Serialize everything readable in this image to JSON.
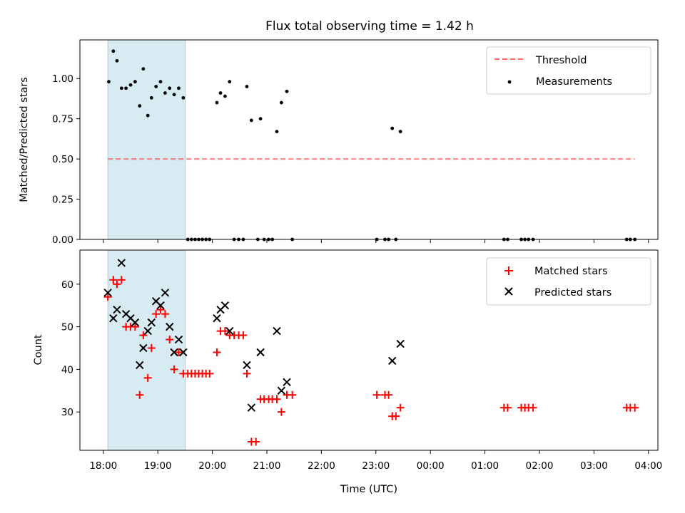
{
  "chart_data": [
    {
      "type": "scatter",
      "title": "Flux total observing time = 1.42 h",
      "ylabel": "Matched/Predicted stars",
      "xlabel": "",
      "x_range": [
        "18:00",
        "04:00"
      ],
      "ylim": [
        0,
        1.24
      ],
      "yticks": [
        "0.00",
        "0.25",
        "0.50",
        "0.75",
        "1.00"
      ],
      "shaded_region": [
        "18:05",
        "19:30"
      ],
      "legend_position": "top-right",
      "grid": false,
      "series": [
        {
          "name": "Threshold",
          "style": "dashed line",
          "color": "#ff6666",
          "points": [
            [
              "18:05",
              0.5
            ],
            [
              "23:30",
              0.5
            ],
            [
              "03:45",
              0.5
            ]
          ]
        },
        {
          "name": "Measurements",
          "style": "dot",
          "color": "#000000",
          "points": [
            [
              "18:06",
              0.98
            ],
            [
              "18:11",
              1.17
            ],
            [
              "18:15",
              1.11
            ],
            [
              "18:20",
              0.94
            ],
            [
              "18:25",
              0.94
            ],
            [
              "18:30",
              0.96
            ],
            [
              "18:35",
              0.98
            ],
            [
              "18:40",
              0.83
            ],
            [
              "18:44",
              1.06
            ],
            [
              "18:49",
              0.77
            ],
            [
              "18:53",
              0.88
            ],
            [
              "18:58",
              0.95
            ],
            [
              "19:03",
              0.98
            ],
            [
              "19:08",
              0.91
            ],
            [
              "19:13",
              0.94
            ],
            [
              "19:18",
              0.9
            ],
            [
              "19:23",
              0.94
            ],
            [
              "19:28",
              0.88
            ],
            [
              "19:33",
              0.0
            ],
            [
              "19:37",
              0.0
            ],
            [
              "19:41",
              0.0
            ],
            [
              "19:45",
              0.0
            ],
            [
              "19:49",
              0.0
            ],
            [
              "19:53",
              0.0
            ],
            [
              "19:57",
              0.0
            ],
            [
              "20:05",
              0.85
            ],
            [
              "20:09",
              0.91
            ],
            [
              "20:14",
              0.89
            ],
            [
              "20:19",
              0.98
            ],
            [
              "20:24",
              0.0
            ],
            [
              "20:29",
              0.0
            ],
            [
              "20:34",
              0.0
            ],
            [
              "20:38",
              0.95
            ],
            [
              "20:43",
              0.74
            ],
            [
              "20:50",
              0.0
            ],
            [
              "20:53",
              0.75
            ],
            [
              "20:57",
              0.0
            ],
            [
              "21:02",
              0.0
            ],
            [
              "21:06",
              0.0
            ],
            [
              "21:11",
              0.67
            ],
            [
              "21:16",
              0.85
            ],
            [
              "21:22",
              0.92
            ],
            [
              "21:28",
              0.0
            ],
            [
              "23:01",
              0.0
            ],
            [
              "23:10",
              0.0
            ],
            [
              "23:14",
              0.0
            ],
            [
              "23:18",
              0.69
            ],
            [
              "23:22",
              0.0
            ],
            [
              "23:27",
              0.67
            ],
            [
              "01:21",
              0.0
            ],
            [
              "01:25",
              0.0
            ],
            [
              "01:40",
              0.0
            ],
            [
              "01:44",
              0.0
            ],
            [
              "01:48",
              0.0
            ],
            [
              "01:53",
              0.0
            ],
            [
              "03:36",
              0.0
            ],
            [
              "03:40",
              0.0
            ],
            [
              "03:45",
              0.0
            ]
          ]
        }
      ]
    },
    {
      "type": "scatter",
      "title": "",
      "ylabel": "Count",
      "xlabel": "Time (UTC)",
      "x_range": [
        "18:00",
        "04:00"
      ],
      "xticks": [
        "18:00",
        "19:00",
        "20:00",
        "21:00",
        "22:00",
        "23:00",
        "00:00",
        "01:00",
        "02:00",
        "03:00",
        "04:00"
      ],
      "ylim": [
        21,
        68
      ],
      "yticks": [
        "30",
        "40",
        "50",
        "60"
      ],
      "shaded_region": [
        "18:05",
        "19:30"
      ],
      "legend_position": "top-right",
      "grid": false,
      "series": [
        {
          "name": "Matched stars",
          "marker": "+",
          "color": "#ff0000",
          "points": [
            [
              "18:05",
              57
            ],
            [
              "18:11",
              61
            ],
            [
              "18:15",
              60
            ],
            [
              "18:20",
              61
            ],
            [
              "18:25",
              50
            ],
            [
              "18:30",
              50
            ],
            [
              "18:35",
              50
            ],
            [
              "18:40",
              34
            ],
            [
              "18:44",
              48
            ],
            [
              "18:49",
              38
            ],
            [
              "18:53",
              45
            ],
            [
              "18:58",
              53
            ],
            [
              "19:03",
              54
            ],
            [
              "19:08",
              53
            ],
            [
              "19:13",
              47
            ],
            [
              "19:18",
              40
            ],
            [
              "19:23",
              44
            ],
            [
              "19:28",
              39
            ],
            [
              "19:33",
              39
            ],
            [
              "19:37",
              39
            ],
            [
              "19:41",
              39
            ],
            [
              "19:45",
              39
            ],
            [
              "19:49",
              39
            ],
            [
              "19:53",
              39
            ],
            [
              "19:57",
              39
            ],
            [
              "20:05",
              44
            ],
            [
              "20:09",
              49
            ],
            [
              "20:14",
              49
            ],
            [
              "20:19",
              48
            ],
            [
              "20:24",
              48
            ],
            [
              "20:29",
              48
            ],
            [
              "20:34",
              48
            ],
            [
              "20:38",
              39
            ],
            [
              "20:43",
              23
            ],
            [
              "20:48",
              23
            ],
            [
              "20:53",
              33
            ],
            [
              "20:57",
              33
            ],
            [
              "21:02",
              33
            ],
            [
              "21:06",
              33
            ],
            [
              "21:11",
              33
            ],
            [
              "21:16",
              30
            ],
            [
              "21:22",
              34
            ],
            [
              "21:28",
              34
            ],
            [
              "23:01",
              34
            ],
            [
              "23:10",
              34
            ],
            [
              "23:14",
              34
            ],
            [
              "23:18",
              29
            ],
            [
              "23:22",
              29
            ],
            [
              "23:27",
              31
            ],
            [
              "01:21",
              31
            ],
            [
              "01:25",
              31
            ],
            [
              "01:40",
              31
            ],
            [
              "01:44",
              31
            ],
            [
              "01:48",
              31
            ],
            [
              "01:53",
              31
            ],
            [
              "03:36",
              31
            ],
            [
              "03:40",
              31
            ],
            [
              "03:45",
              31
            ]
          ]
        },
        {
          "name": "Predicted stars",
          "marker": "x",
          "color": "#000000",
          "points": [
            [
              "18:05",
              58
            ],
            [
              "18:11",
              52
            ],
            [
              "18:15",
              54
            ],
            [
              "18:20",
              65
            ],
            [
              "18:25",
              53
            ],
            [
              "18:30",
              52
            ],
            [
              "18:35",
              51
            ],
            [
              "18:40",
              41
            ],
            [
              "18:44",
              45
            ],
            [
              "18:49",
              49
            ],
            [
              "18:53",
              51
            ],
            [
              "18:58",
              56
            ],
            [
              "19:03",
              55
            ],
            [
              "19:08",
              58
            ],
            [
              "19:13",
              50
            ],
            [
              "19:18",
              44
            ],
            [
              "19:23",
              47
            ],
            [
              "19:28",
              44
            ],
            [
              "20:05",
              52
            ],
            [
              "20:09",
              54
            ],
            [
              "20:14",
              55
            ],
            [
              "20:19",
              49
            ],
            [
              "20:38",
              41
            ],
            [
              "20:43",
              31
            ],
            [
              "20:53",
              44
            ],
            [
              "21:11",
              49
            ],
            [
              "21:16",
              35
            ],
            [
              "21:22",
              37
            ],
            [
              "23:18",
              42
            ],
            [
              "23:27",
              46
            ]
          ]
        }
      ]
    }
  ]
}
